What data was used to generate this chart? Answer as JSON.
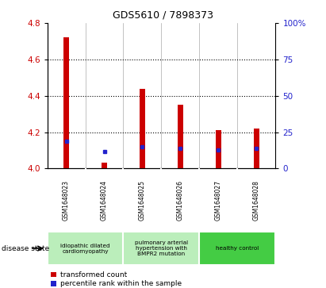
{
  "title": "GDS5610 / 7898373",
  "samples": [
    "GSM1648023",
    "GSM1648024",
    "GSM1648025",
    "GSM1648026",
    "GSM1648027",
    "GSM1648028"
  ],
  "red_values": [
    4.72,
    4.03,
    4.44,
    4.35,
    4.21,
    4.22
  ],
  "blue_values": [
    4.15,
    4.095,
    4.12,
    4.11,
    4.1,
    4.11
  ],
  "ylim": [
    4.0,
    4.8
  ],
  "yticks": [
    4.0,
    4.2,
    4.4,
    4.6,
    4.8
  ],
  "y2ticks": [
    0,
    25,
    50,
    75,
    100
  ],
  "y2ticklabels": [
    "0",
    "25",
    "50",
    "75",
    "100%"
  ],
  "bar_width": 0.15,
  "red_color": "#cc0000",
  "blue_color": "#2222cc",
  "grid_color": "#000000",
  "bg_color": "#ffffff",
  "group_labels": [
    "idiopathic dilated\ncardiomyopathy",
    "pulmonary arterial\nhypertension with\nBMPR2 mutation",
    "healthy control"
  ],
  "group_ranges": [
    [
      0,
      2
    ],
    [
      2,
      4
    ],
    [
      4,
      6
    ]
  ],
  "group_colors": [
    "#bbeebb",
    "#bbeebb",
    "#44cc44"
  ],
  "disease_state_label": "disease state",
  "legend_red": "transformed count",
  "legend_blue": "percentile rank within the sample",
  "sample_bg_color": "#cccccc",
  "ylabel_color": "#cc0000",
  "y2label_color": "#2222cc",
  "title_fontsize": 9,
  "tick_fontsize": 7.5,
  "label_fontsize": 6.5,
  "legend_fontsize": 6.5
}
